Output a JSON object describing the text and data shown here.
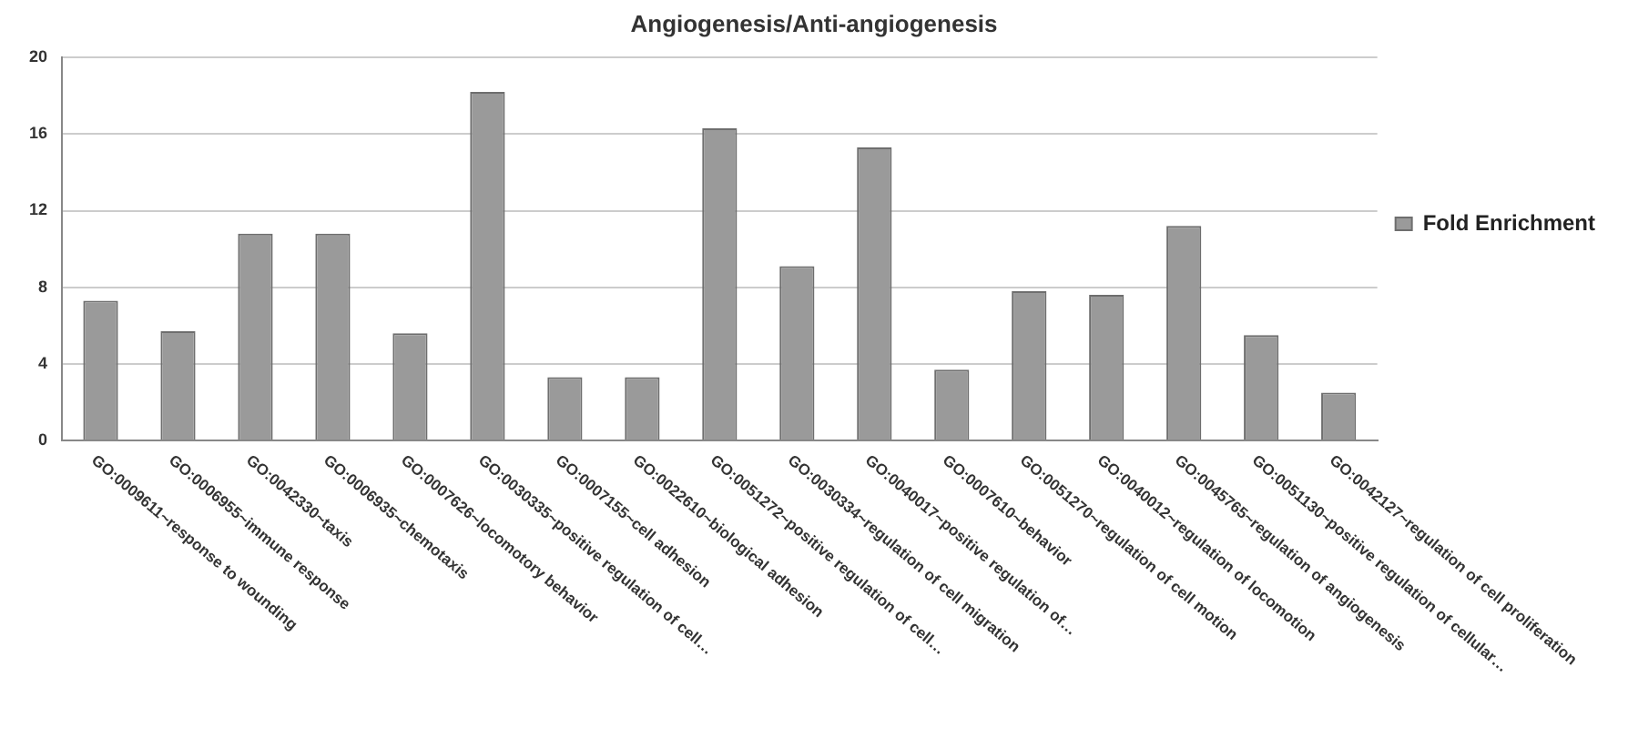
{
  "chart_data": {
    "type": "bar",
    "title": "Angiogenesis/Anti-angiogenesis",
    "categories": [
      "GO:0009611~response to wounding",
      "GO:0006955~immune response",
      "GO:0042330~taxis",
      "GO:0006935~chemotaxis",
      "GO:0007626~locomotory behavior",
      "GO:0030335~positive regulation of cell…",
      "GO:0007155~cell adhesion",
      "GO:0022610~biological adhesion",
      "GO:0051272~positive regulation of cell…",
      "GO:0030334~regulation of cell migration",
      "GO:0040017~positive regulation of…",
      "GO:0007610~behavior",
      "GO:0051270~regulation of cell motion",
      "GO:0040012~regulation of locomotion",
      "GO:0045765~regulation of angiogenesis",
      "GO:0051130~positive regulation of cellular…",
      "GO:0042127~regulation of cell proliferation"
    ],
    "series": [
      {
        "name": "Fold Enrichment",
        "color": "#9a9a9a",
        "values": [
          7.3,
          5.7,
          10.8,
          10.8,
          5.6,
          18.2,
          3.3,
          3.3,
          16.3,
          9.1,
          15.3,
          3.7,
          7.8,
          7.6,
          11.2,
          5.5,
          2.5
        ]
      }
    ],
    "ylim": [
      0,
      20
    ],
    "yticks": [
      0,
      4,
      8,
      12,
      16,
      20
    ],
    "grid": "y",
    "legend": "right"
  }
}
